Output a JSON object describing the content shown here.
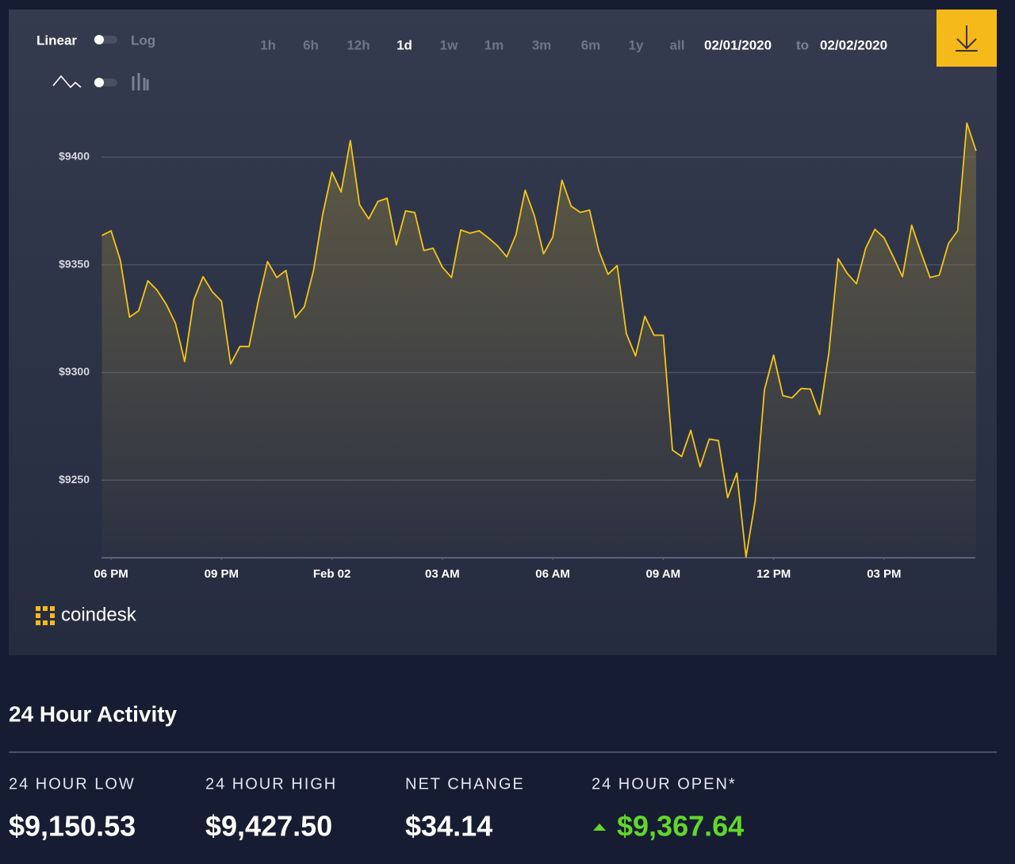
{
  "controls": {
    "scale_options": [
      "Linear",
      "Log"
    ],
    "ranges": [
      "1h",
      "6h",
      "12h",
      "1d",
      "1w",
      "1m",
      "3m",
      "6m",
      "1y",
      "all"
    ],
    "active_range": "1d",
    "date_from": "02/01/2020",
    "date_separator": "to",
    "date_to": "02/02/2020"
  },
  "brand": "coindesk",
  "chart_data": {
    "type": "line",
    "color": "#f5c518",
    "grid": true,
    "xlim": [
      17.74,
      41.48
    ],
    "xticks": [
      {
        "value": 18,
        "label": "06 PM"
      },
      {
        "value": 21,
        "label": "09 PM"
      },
      {
        "value": 24,
        "label": "Feb 02"
      },
      {
        "value": 27,
        "label": "03 AM"
      },
      {
        "value": 30,
        "label": "06 AM"
      },
      {
        "value": 33,
        "label": "09 AM"
      },
      {
        "value": 36,
        "label": "12 PM"
      },
      {
        "value": 39,
        "label": "03 PM"
      }
    ],
    "ylim": [
      9214,
      9421
    ],
    "yticks": [
      {
        "value": 9250,
        "label": "$9250"
      },
      {
        "value": 9300,
        "label": "$9300"
      },
      {
        "value": 9350,
        "label": "$9350"
      },
      {
        "value": 9400,
        "label": "$9400"
      }
    ],
    "x": [
      17.75,
      18,
      18.25,
      18.5,
      18.75,
      19,
      19.25,
      19.5,
      19.75,
      20,
      20.25,
      20.5,
      20.75,
      21,
      21.25,
      21.5,
      21.75,
      22,
      22.25,
      22.5,
      22.75,
      23,
      23.25,
      23.5,
      23.75,
      24,
      24.25,
      24.5,
      24.75,
      25,
      25.25,
      25.5,
      25.75,
      26,
      26.25,
      26.5,
      26.75,
      27,
      27.25,
      27.5,
      27.75,
      28,
      28.25,
      28.5,
      28.75,
      29,
      29.25,
      29.5,
      29.75,
      30,
      30.25,
      30.5,
      30.75,
      31,
      31.25,
      31.5,
      31.75,
      32,
      32.25,
      32.5,
      32.75,
      33,
      33.25,
      33.5,
      33.75,
      34,
      34.25,
      34.5,
      34.75,
      35,
      35.25,
      35.5,
      35.75,
      36,
      36.25,
      36.5,
      36.75,
      37,
      37.25,
      37.5,
      37.75,
      38,
      38.25,
      38.5,
      38.75,
      39,
      39.25,
      39.5,
      39.75,
      40,
      40.25,
      40.5,
      40.75,
      41,
      41.25,
      41.5
    ],
    "values": [
      9363.6,
      9365.8,
      9352.2,
      9325.7,
      9328.7,
      9342.6,
      9338.2,
      9331.6,
      9322.8,
      9305.1,
      9333.8,
      9344.5,
      9337.5,
      9333.1,
      9304.0,
      9312.1,
      9312.1,
      9333.1,
      9351.5,
      9344.1,
      9347.4,
      9325.4,
      9330.5,
      9347.4,
      9373.5,
      9393.0,
      9383.8,
      9407.7,
      9377.9,
      9371.3,
      9379.4,
      9380.9,
      9359.2,
      9375.0,
      9374.3,
      9356.6,
      9357.7,
      9348.9,
      9344.1,
      9366.2,
      9364.7,
      9365.8,
      9362.5,
      9358.8,
      9353.7,
      9364.0,
      9384.6,
      9372.8,
      9355.1,
      9362.9,
      9389.3,
      9377.2,
      9374.3,
      9375.4,
      9356.6,
      9345.6,
      9349.6,
      9318.0,
      9307.7,
      9326.1,
      9317.3,
      9317.3,
      9264.0,
      9261.0,
      9273.2,
      9256.2,
      9269.1,
      9268.4,
      9241.9,
      9253.3,
      9214.3,
      9240.4,
      9291.9,
      9308.1,
      9289.3,
      9288.2,
      9292.6,
      9292.3,
      9280.5,
      9309.2,
      9352.9,
      9346.0,
      9341.2,
      9357.7,
      9366.5,
      9362.5,
      9353.7,
      9344.5,
      9368.4,
      9355.9,
      9344.1,
      9345.2,
      9359.9,
      9365.8,
      9415.8,
      9402.9
    ]
  },
  "activity": {
    "title": "24 Hour Activity",
    "stats": [
      {
        "label": "24 HOUR LOW",
        "value": "$9,150.53"
      },
      {
        "label": "24 HOUR HIGH",
        "value": "$9,427.50"
      },
      {
        "label": "NET CHANGE",
        "value": "$34.14"
      },
      {
        "label": "24 HOUR OPEN*",
        "value": "$9,367.64",
        "direction": "up",
        "color": "#62d72a"
      }
    ]
  }
}
